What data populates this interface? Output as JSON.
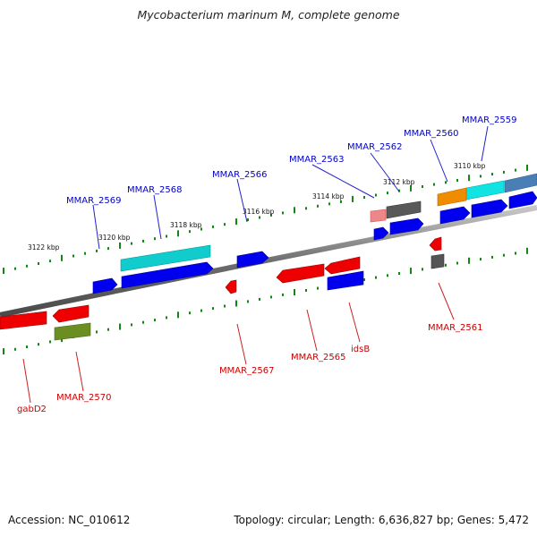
{
  "title": "Mycobacterium marinum M, complete genome",
  "footer": {
    "accession": "Accession: NC_010612",
    "summary": "Topology: circular; Length: 6,636,827 bp; Genes: 5,472"
  },
  "ruler_labels": [
    "3110 kbp",
    "3112 kbp",
    "3114 kbp",
    "3116 kbp",
    "3118 kbp",
    "3120 kbp",
    "3122 kbp"
  ],
  "top_genes": [
    "MMAR_2559",
    "MMAR_2560",
    "MMAR_2562",
    "MMAR_2563",
    "MMAR_2566",
    "MMAR_2568",
    "MMAR_2569"
  ],
  "bottom_genes": [
    "MMAR_2561",
    "idsB",
    "MMAR_2565",
    "MMAR_2567",
    "MMAR_2570",
    "gabD2"
  ],
  "colors": {
    "forward_label": "#0000cc",
    "reverse_label": "#cc0000",
    "forward_gene": "#0000ee",
    "reverse_gene": "#ee0000",
    "cyan": "#00dddd",
    "steel_blue": "#4a7fb5",
    "orange": "#f08c00",
    "gray_gene": "#555555",
    "olive": "#6b8e23",
    "pink": "#ee8888",
    "backbone": "#808080",
    "tick": "#118811"
  }
}
